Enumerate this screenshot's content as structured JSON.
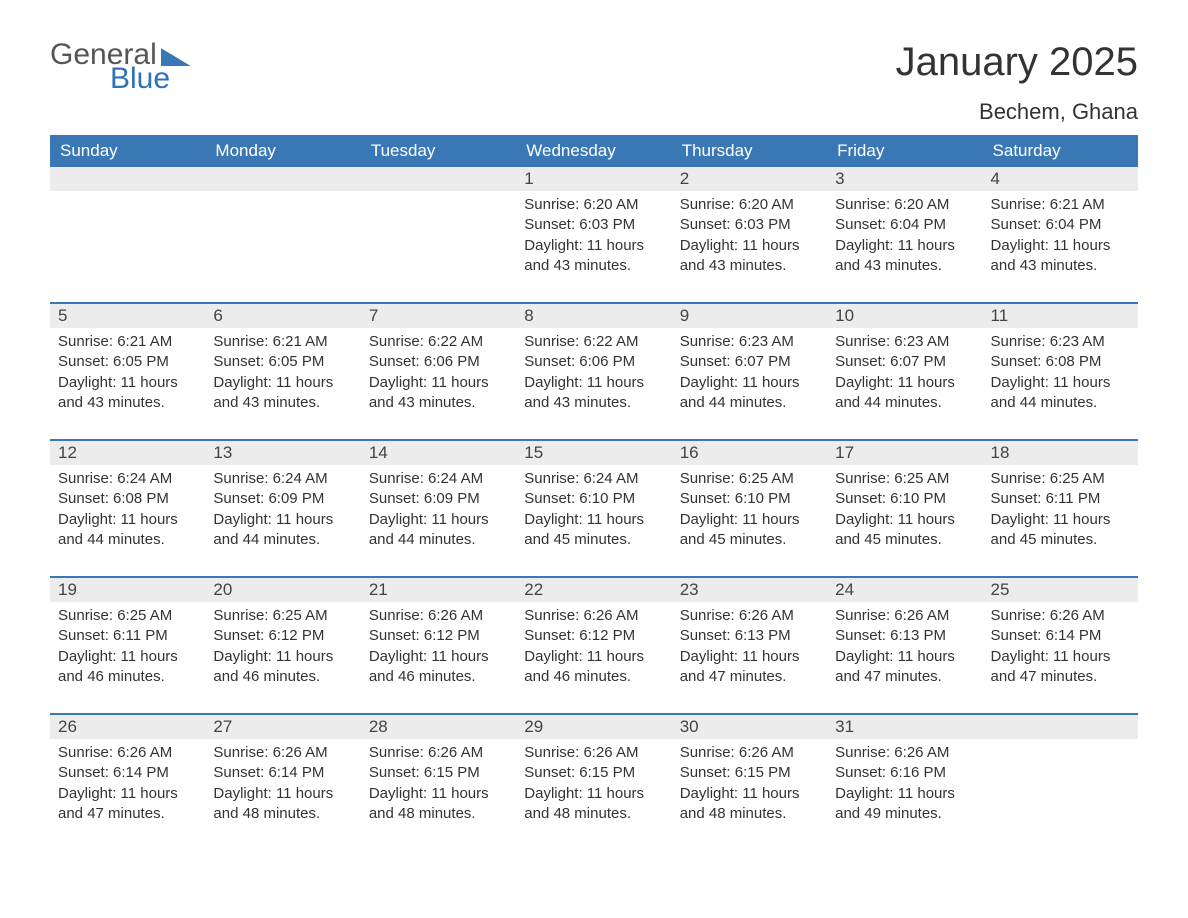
{
  "logo": {
    "line1": "General",
    "line2": "Blue"
  },
  "title": "January 2025",
  "location": "Bechem, Ghana",
  "columns": [
    "Sunday",
    "Monday",
    "Tuesday",
    "Wednesday",
    "Thursday",
    "Friday",
    "Saturday"
  ],
  "colors": {
    "header_bg": "#3a78b5",
    "header_text": "#ffffff",
    "daynum_bg": "#ececec",
    "row_border": "#3a78b5",
    "text": "#333333",
    "logo_gray": "#555555",
    "logo_blue": "#2f73b3"
  },
  "weeks": [
    [
      null,
      null,
      null,
      {
        "n": "1",
        "sunrise": "6:20 AM",
        "sunset": "6:03 PM",
        "dl": "11 hours and 43 minutes."
      },
      {
        "n": "2",
        "sunrise": "6:20 AM",
        "sunset": "6:03 PM",
        "dl": "11 hours and 43 minutes."
      },
      {
        "n": "3",
        "sunrise": "6:20 AM",
        "sunset": "6:04 PM",
        "dl": "11 hours and 43 minutes."
      },
      {
        "n": "4",
        "sunrise": "6:21 AM",
        "sunset": "6:04 PM",
        "dl": "11 hours and 43 minutes."
      }
    ],
    [
      {
        "n": "5",
        "sunrise": "6:21 AM",
        "sunset": "6:05 PM",
        "dl": "11 hours and 43 minutes."
      },
      {
        "n": "6",
        "sunrise": "6:21 AM",
        "sunset": "6:05 PM",
        "dl": "11 hours and 43 minutes."
      },
      {
        "n": "7",
        "sunrise": "6:22 AM",
        "sunset": "6:06 PM",
        "dl": "11 hours and 43 minutes."
      },
      {
        "n": "8",
        "sunrise": "6:22 AM",
        "sunset": "6:06 PM",
        "dl": "11 hours and 43 minutes."
      },
      {
        "n": "9",
        "sunrise": "6:23 AM",
        "sunset": "6:07 PM",
        "dl": "11 hours and 44 minutes."
      },
      {
        "n": "10",
        "sunrise": "6:23 AM",
        "sunset": "6:07 PM",
        "dl": "11 hours and 44 minutes."
      },
      {
        "n": "11",
        "sunrise": "6:23 AM",
        "sunset": "6:08 PM",
        "dl": "11 hours and 44 minutes."
      }
    ],
    [
      {
        "n": "12",
        "sunrise": "6:24 AM",
        "sunset": "6:08 PM",
        "dl": "11 hours and 44 minutes."
      },
      {
        "n": "13",
        "sunrise": "6:24 AM",
        "sunset": "6:09 PM",
        "dl": "11 hours and 44 minutes."
      },
      {
        "n": "14",
        "sunrise": "6:24 AM",
        "sunset": "6:09 PM",
        "dl": "11 hours and 44 minutes."
      },
      {
        "n": "15",
        "sunrise": "6:24 AM",
        "sunset": "6:10 PM",
        "dl": "11 hours and 45 minutes."
      },
      {
        "n": "16",
        "sunrise": "6:25 AM",
        "sunset": "6:10 PM",
        "dl": "11 hours and 45 minutes."
      },
      {
        "n": "17",
        "sunrise": "6:25 AM",
        "sunset": "6:10 PM",
        "dl": "11 hours and 45 minutes."
      },
      {
        "n": "18",
        "sunrise": "6:25 AM",
        "sunset": "6:11 PM",
        "dl": "11 hours and 45 minutes."
      }
    ],
    [
      {
        "n": "19",
        "sunrise": "6:25 AM",
        "sunset": "6:11 PM",
        "dl": "11 hours and 46 minutes."
      },
      {
        "n": "20",
        "sunrise": "6:25 AM",
        "sunset": "6:12 PM",
        "dl": "11 hours and 46 minutes."
      },
      {
        "n": "21",
        "sunrise": "6:26 AM",
        "sunset": "6:12 PM",
        "dl": "11 hours and 46 minutes."
      },
      {
        "n": "22",
        "sunrise": "6:26 AM",
        "sunset": "6:12 PM",
        "dl": "11 hours and 46 minutes."
      },
      {
        "n": "23",
        "sunrise": "6:26 AM",
        "sunset": "6:13 PM",
        "dl": "11 hours and 47 minutes."
      },
      {
        "n": "24",
        "sunrise": "6:26 AM",
        "sunset": "6:13 PM",
        "dl": "11 hours and 47 minutes."
      },
      {
        "n": "25",
        "sunrise": "6:26 AM",
        "sunset": "6:14 PM",
        "dl": "11 hours and 47 minutes."
      }
    ],
    [
      {
        "n": "26",
        "sunrise": "6:26 AM",
        "sunset": "6:14 PM",
        "dl": "11 hours and 47 minutes."
      },
      {
        "n": "27",
        "sunrise": "6:26 AM",
        "sunset": "6:14 PM",
        "dl": "11 hours and 48 minutes."
      },
      {
        "n": "28",
        "sunrise": "6:26 AM",
        "sunset": "6:15 PM",
        "dl": "11 hours and 48 minutes."
      },
      {
        "n": "29",
        "sunrise": "6:26 AM",
        "sunset": "6:15 PM",
        "dl": "11 hours and 48 minutes."
      },
      {
        "n": "30",
        "sunrise": "6:26 AM",
        "sunset": "6:15 PM",
        "dl": "11 hours and 48 minutes."
      },
      {
        "n": "31",
        "sunrise": "6:26 AM",
        "sunset": "6:16 PM",
        "dl": "11 hours and 49 minutes."
      },
      null
    ]
  ],
  "labels": {
    "sunrise": "Sunrise: ",
    "sunset": "Sunset: ",
    "daylight": "Daylight: "
  }
}
